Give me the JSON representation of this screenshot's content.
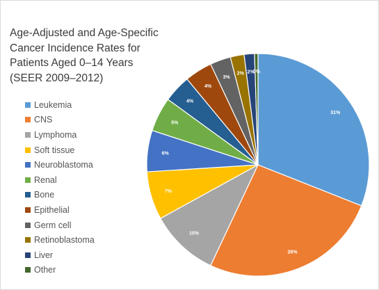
{
  "chart_data": {
    "type": "pie",
    "title": "Age-Adjusted and Age-Specific Cancer Incidence Rates for Patients Aged 0–14 Years (SEER 2009–2012)",
    "legend_position": "left",
    "slices": [
      {
        "label": "Leukemia",
        "value": 31,
        "display": "31%",
        "color": "#5b9bd5"
      },
      {
        "label": "CNS",
        "value": 26,
        "display": "26%",
        "color": "#ed7d31"
      },
      {
        "label": "Lymphoma",
        "value": 10,
        "display": "10%",
        "color": "#a5a5a5"
      },
      {
        "label": "Soft tissue",
        "value": 7,
        "display": "7%",
        "color": "#ffc000"
      },
      {
        "label": "Neuroblastoma",
        "value": 6,
        "display": "6%",
        "color": "#4472c4"
      },
      {
        "label": "Renal",
        "value": 5,
        "display": "5%",
        "color": "#70ad47"
      },
      {
        "label": "Bone",
        "value": 4,
        "display": "4%",
        "color": "#255e91"
      },
      {
        "label": "Epithelial",
        "value": 4,
        "display": "4%",
        "color": "#9e480e"
      },
      {
        "label": "Germ cell",
        "value": 3,
        "display": "3%",
        "color": "#636363"
      },
      {
        "label": "Retinoblastoma",
        "value": 2,
        "display": "2%",
        "color": "#997300"
      },
      {
        "label": "Liver",
        "value": 1.5,
        "display": "2%",
        "color": "#264478"
      },
      {
        "label": "Other",
        "value": 0.5,
        "display": "0%",
        "color": "#43682b"
      }
    ]
  }
}
